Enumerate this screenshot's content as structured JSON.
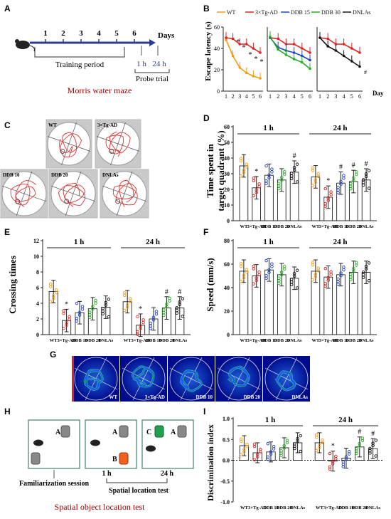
{
  "panels": {
    "A": {
      "letter": "A",
      "days_label": "Days",
      "day_ticks": [
        "1",
        "2",
        "3",
        "4",
        "5",
        "6"
      ],
      "probe_1": "1 h",
      "probe_2": "24 h",
      "training": "Training period",
      "probe": "Probe trial",
      "caption": "Morris water maze"
    },
    "B": {
      "letter": "B",
      "legend": [
        "WT",
        "3×Tg-AD",
        "DDB 15",
        "DDB 30",
        "DNLAs"
      ],
      "ylabel": "Escape latency (s)",
      "xlabel": "Day",
      "yticks": [
        "0",
        "20",
        "40",
        "60"
      ],
      "xticks": [
        "1",
        "2",
        "3",
        "4",
        "5",
        "6"
      ],
      "stars": [
        "*",
        "*",
        "*",
        "*",
        "*"
      ],
      "hash": "#"
    },
    "C": {
      "letter": "C",
      "labels": [
        "WT",
        "3×Tg-AD",
        "DDB 10",
        "DDB 20",
        "DNLAs"
      ]
    },
    "D": {
      "letter": "D",
      "ylabel_1": "Time spent in",
      "ylabel_2": "target quadrant (%)",
      "group_1": "1 h",
      "group_2": "24 h",
      "yticks": [
        "0",
        "10",
        "20",
        "30",
        "40",
        "50",
        "60"
      ],
      "star": "*",
      "hash": "#"
    },
    "E": {
      "letter": "E",
      "ylabel": "Crossing times",
      "group_1": "1 h",
      "group_2": "24 h",
      "yticks": [
        "0",
        "2",
        "4",
        "6",
        "8",
        "10",
        "12"
      ],
      "star": "*",
      "hash": "#"
    },
    "F": {
      "letter": "F",
      "ylabel": "Speed (mm/s)",
      "group_1": "1 h",
      "group_2": "24 h",
      "yticks": [
        "0",
        "20",
        "40",
        "60",
        "80"
      ]
    },
    "G": {
      "letter": "G",
      "labels": [
        "WT",
        "3×Tg-AD",
        "DDB 10",
        "DDB 20",
        "DNLAs"
      ]
    },
    "H": {
      "letter": "H",
      "obj_a": "A",
      "obj_b": "B",
      "obj_c": "C",
      "t1": "1 h",
      "t2": "24 h",
      "familiar": "Familiarization session",
      "spatial": "Spatial location test",
      "caption": "Spatial object location test"
    },
    "I": {
      "letter": "I",
      "ylabel": "Discrimination index",
      "group_1": "1 h",
      "group_2": "24 h",
      "yticks": [
        "-1.0",
        "-0.5",
        "0.0",
        "0.5",
        "1.0"
      ],
      "star": "*",
      "hash": "#"
    }
  },
  "bar_categories": [
    "WT",
    "3×Tg-AD",
    "DDB 10",
    "DDB 20",
    "DNLAs"
  ],
  "colors": {
    "wt": "#f39c12",
    "tg": "#e02020",
    "ddb10": "#2040d0",
    "ddb20": "#20b020",
    "dnlas": "#111111",
    "caption": "#a00000",
    "arrow": "#2c3e90"
  },
  "chart_data": [
    {
      "panel": "B",
      "type": "line",
      "xlabel": "Day",
      "ylabel": "Escape latency (s)",
      "ylim": [
        0,
        60
      ],
      "x": [
        1,
        2,
        3,
        4,
        5,
        6
      ],
      "series": [
        {
          "name": "WT",
          "values": [
            48,
            33,
            22,
            17,
            14,
            12
          ]
        },
        {
          "name": "3×Tg-AD",
          "values": [
            50,
            49,
            44,
            44,
            40,
            36
          ]
        },
        {
          "name": "DDB 15",
          "values": [
            50,
            41,
            38,
            36,
            33,
            29
          ]
        },
        {
          "name": "DDB 30",
          "values": [
            51,
            39,
            34,
            30,
            27,
            21
          ]
        },
        {
          "name": "DNLAs",
          "values": [
            50,
            42,
            38,
            33,
            28,
            23
          ]
        }
      ]
    },
    {
      "panel": "D",
      "type": "bar",
      "ylabel": "Time spent in target quadrant (%)",
      "ylim": [
        0,
        60
      ],
      "categories": [
        "WT",
        "3×Tg-AD",
        "DDB 10",
        "DDB 20",
        "DNLAs"
      ],
      "series": [
        {
          "name": "1 h",
          "values": [
            35,
            21,
            29,
            26,
            31
          ]
        },
        {
          "name": "24 h",
          "values": [
            28,
            15,
            24,
            25,
            26
          ]
        }
      ]
    },
    {
      "panel": "E",
      "type": "bar",
      "ylabel": "Crossing times",
      "ylim": [
        0,
        12
      ],
      "categories": [
        "WT",
        "3×Tg-AD",
        "DDB 10",
        "DDB 20",
        "DNLAs"
      ],
      "series": [
        {
          "name": "1 h",
          "values": [
            5.5,
            1.8,
            2.8,
            3.3,
            3.5
          ]
        },
        {
          "name": "24 h",
          "values": [
            4.2,
            1.2,
            2.0,
            3.4,
            3.4
          ]
        }
      ]
    },
    {
      "panel": "F",
      "type": "bar",
      "ylabel": "Speed (mm/s)",
      "ylim": [
        0,
        80
      ],
      "categories": [
        "WT",
        "3×Tg-AD",
        "DDB 10",
        "DDB 20",
        "DNLAs"
      ],
      "series": [
        {
          "name": "1 h",
          "values": [
            54,
            50,
            55,
            51,
            48
          ]
        },
        {
          "name": "24 h",
          "values": [
            54,
            49,
            51,
            53,
            53
          ]
        }
      ]
    },
    {
      "panel": "I",
      "type": "bar",
      "ylabel": "Discrimination index",
      "ylim": [
        -1,
        1
      ],
      "categories": [
        "WT",
        "3×Tg-AD",
        "DDB 10",
        "DDB 20",
        "DNLAs"
      ],
      "series": [
        {
          "name": "1 h",
          "values": [
            0.35,
            0.18,
            0.2,
            0.3,
            0.42
          ]
        },
        {
          "name": "24 h",
          "values": [
            0.42,
            -0.02,
            0.05,
            0.32,
            0.28
          ]
        }
      ]
    }
  ]
}
